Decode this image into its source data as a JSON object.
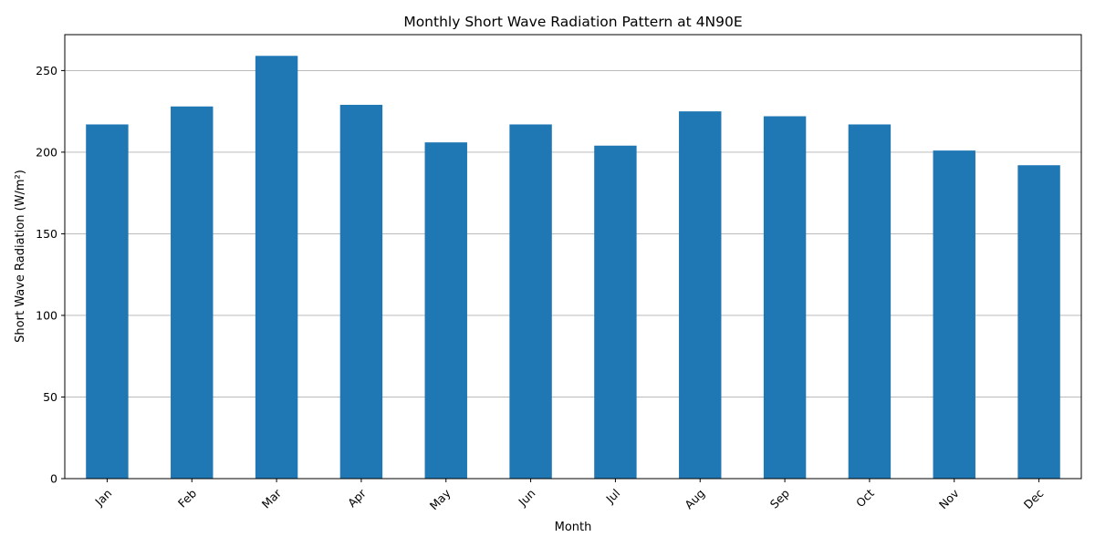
{
  "chart_data": {
    "type": "bar",
    "title": "Monthly Short Wave Radiation Pattern at 4N90E",
    "xlabel": "Month",
    "ylabel": "Short Wave Radiation (W/m²)",
    "categories": [
      "Jan",
      "Feb",
      "Mar",
      "Apr",
      "May",
      "Jun",
      "Jul",
      "Aug",
      "Sep",
      "Oct",
      "Nov",
      "Dec"
    ],
    "values": [
      217,
      228,
      259,
      229,
      206,
      217,
      204,
      225,
      222,
      217,
      201,
      192
    ],
    "ylim": [
      0,
      272
    ],
    "yticks": [
      0,
      50,
      100,
      150,
      200,
      250
    ],
    "grid": "y",
    "legend": "none",
    "bar_color": "#1f77b4",
    "x_tick_rotation": 45
  }
}
